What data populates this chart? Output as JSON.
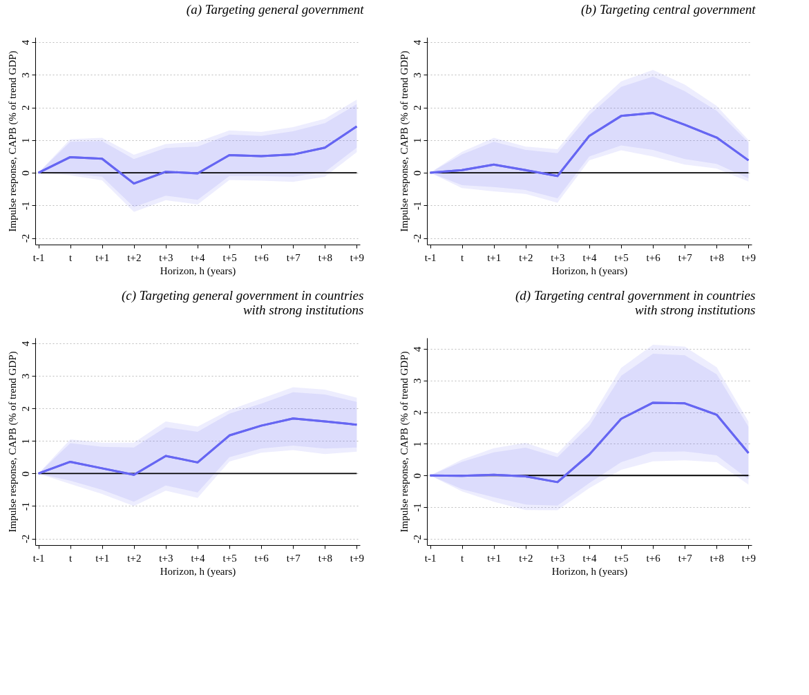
{
  "chart_data": [
    {
      "type": "line",
      "title": "(a) Targeting general government",
      "xlabel": "Horizon, h (years)",
      "ylabel": "Impulse response, CAPB (% of trend GDP)",
      "categories": [
        "t-1",
        "t",
        "t+1",
        "t+2",
        "t+3",
        "t+4",
        "t+5",
        "t+6",
        "t+7",
        "t+8",
        "t+9"
      ],
      "ylim": [
        -2.2,
        4.15
      ],
      "yticks": [
        -2,
        -1,
        0,
        1,
        2,
        3,
        4
      ],
      "grid": "y",
      "ref_lines": [
        {
          "axis": "y",
          "value": 0,
          "color": "#000000"
        }
      ],
      "series": [
        {
          "color": "#6b6bf4",
          "values": [
            0,
            0.48,
            0.43,
            -0.33,
            0.03,
            -0.02,
            0.54,
            0.51,
            0.56,
            0.77,
            1.42
          ],
          "lower": [
            0,
            -0.08,
            -0.23,
            -1.2,
            -0.84,
            -0.97,
            -0.22,
            -0.24,
            -0.28,
            -0.12,
            0.63
          ],
          "upper": [
            0,
            1.03,
            1.07,
            0.55,
            0.88,
            0.95,
            1.3,
            1.25,
            1.4,
            1.65,
            2.24
          ]
        },
        {
          "color": "#6666f2",
          "values": [
            0,
            0.48,
            0.43,
            -0.33,
            0.03,
            -0.02,
            0.54,
            0.51,
            0.56,
            0.77,
            1.42
          ],
          "lower": [
            0,
            -0.03,
            -0.12,
            -1.05,
            -0.7,
            -0.83,
            -0.1,
            -0.1,
            -0.12,
            0.02,
            0.77
          ],
          "upper": [
            0,
            0.95,
            0.97,
            0.42,
            0.76,
            0.8,
            1.17,
            1.13,
            1.27,
            1.52,
            2.1
          ]
        }
      ]
    },
    {
      "type": "line",
      "title": "(b) Targeting central government",
      "xlabel": "Horizon, h (years)",
      "ylabel": "Impulse response, CAPB (% of trend GDP)",
      "categories": [
        "t-1",
        "t",
        "t+1",
        "t+2",
        "t+3",
        "t+4",
        "t+5",
        "t+6",
        "t+7",
        "t+8",
        "t+9"
      ],
      "ylim": [
        -2.2,
        4.15
      ],
      "yticks": [
        -2,
        -1,
        0,
        1,
        2,
        3,
        4
      ],
      "grid": "y",
      "ref_lines": [
        {
          "axis": "y",
          "value": 0,
          "color": "#000000"
        }
      ],
      "series": [
        {
          "color": "#6b6bf4",
          "values": [
            0,
            0.08,
            0.25,
            0.08,
            -0.1,
            1.13,
            1.74,
            1.83,
            1.47,
            1.08,
            0.38
          ],
          "lower": [
            0,
            -0.47,
            -0.57,
            -0.65,
            -0.92,
            0.38,
            0.69,
            0.5,
            0.25,
            0.13,
            -0.27
          ],
          "upper": [
            0,
            0.64,
            1.07,
            0.8,
            0.72,
            1.9,
            2.8,
            3.15,
            2.7,
            2.05,
            1.0
          ]
        },
        {
          "color": "#6666f2",
          "values": [
            0,
            0.08,
            0.25,
            0.08,
            -0.1,
            1.13,
            1.74,
            1.83,
            1.47,
            1.08,
            0.38
          ],
          "lower": [
            0,
            -0.38,
            -0.44,
            -0.53,
            -0.78,
            0.5,
            0.84,
            0.7,
            0.42,
            0.27,
            -0.17
          ],
          "upper": [
            0,
            0.56,
            0.95,
            0.7,
            0.6,
            1.77,
            2.63,
            2.95,
            2.5,
            1.9,
            0.93
          ]
        }
      ]
    },
    {
      "type": "line",
      "title": "(c) Targeting general government in countries with strong institutions",
      "xlabel": "Horizon, h (years)",
      "ylabel": "Impulse response, CAPB (% of trend GDP)",
      "categories": [
        "t-1",
        "t",
        "t+1",
        "t+2",
        "t+3",
        "t+4",
        "t+5",
        "t+6",
        "t+7",
        "t+8",
        "t+9"
      ],
      "ylim": [
        -2.2,
        4.17
      ],
      "yticks": [
        -2,
        -1,
        0,
        1,
        2,
        3,
        4
      ],
      "grid": "y",
      "ref_lines": [
        {
          "axis": "y",
          "value": 0,
          "color": "#000000"
        }
      ],
      "series": [
        {
          "color": "#6b6bf4",
          "values": [
            0,
            0.36,
            0.16,
            -0.04,
            0.54,
            0.34,
            1.17,
            1.47,
            1.69,
            1.6,
            1.5
          ],
          "lower": [
            0,
            -0.32,
            -0.63,
            -1.0,
            -0.53,
            -0.75,
            0.37,
            0.64,
            0.72,
            0.6,
            0.67
          ],
          "upper": [
            0,
            1.05,
            0.95,
            0.95,
            1.6,
            1.44,
            1.95,
            2.3,
            2.65,
            2.58,
            2.33
          ]
        },
        {
          "color": "#6666f2",
          "values": [
            0,
            0.36,
            0.16,
            -0.04,
            0.54,
            0.34,
            1.17,
            1.47,
            1.69,
            1.6,
            1.5
          ],
          "lower": [
            0,
            -0.22,
            -0.5,
            -0.87,
            -0.37,
            -0.58,
            0.5,
            0.77,
            0.86,
            0.77,
            0.8
          ],
          "upper": [
            0,
            0.93,
            0.82,
            0.8,
            1.42,
            1.28,
            1.84,
            2.15,
            2.5,
            2.43,
            2.2
          ]
        }
      ]
    },
    {
      "type": "line",
      "title": "(d) Targeting central government in countries with strong institutions",
      "xlabel": "Horizon, h (years)",
      "ylabel": "Impulse response, CAPB (% of trend GDP)",
      "categories": [
        "t-1",
        "t",
        "t+1",
        "t+2",
        "t+3",
        "t+4",
        "t+5",
        "t+6",
        "t+7",
        "t+8",
        "t+9"
      ],
      "ylim": [
        -2.2,
        4.35
      ],
      "yticks": [
        -2,
        -1,
        0,
        1,
        2,
        3,
        4
      ],
      "grid": "y",
      "ref_lines": [
        {
          "axis": "y",
          "value": 0,
          "color": "#000000"
        }
      ],
      "series": [
        {
          "color": "#6b6bf4",
          "values": [
            0,
            -0.01,
            0.02,
            -0.03,
            -0.21,
            0.66,
            1.79,
            2.3,
            2.28,
            1.92,
            0.71
          ],
          "lower": [
            0,
            -0.5,
            -0.83,
            -1.09,
            -1.1,
            -0.4,
            0.18,
            0.45,
            0.48,
            0.42,
            -0.29
          ],
          "upper": [
            0,
            0.5,
            0.86,
            1.03,
            0.7,
            1.73,
            3.4,
            4.13,
            4.07,
            3.42,
            1.7
          ]
        },
        {
          "color": "#6666f2",
          "values": [
            0,
            -0.01,
            0.02,
            -0.03,
            -0.21,
            0.66,
            1.79,
            2.3,
            2.28,
            1.92,
            0.71
          ],
          "lower": [
            0,
            -0.43,
            -0.69,
            -0.92,
            -0.95,
            -0.24,
            0.42,
            0.75,
            0.76,
            0.64,
            -0.12
          ],
          "upper": [
            0,
            0.43,
            0.73,
            0.88,
            0.58,
            1.56,
            3.15,
            3.85,
            3.8,
            3.2,
            1.54
          ]
        }
      ]
    }
  ]
}
